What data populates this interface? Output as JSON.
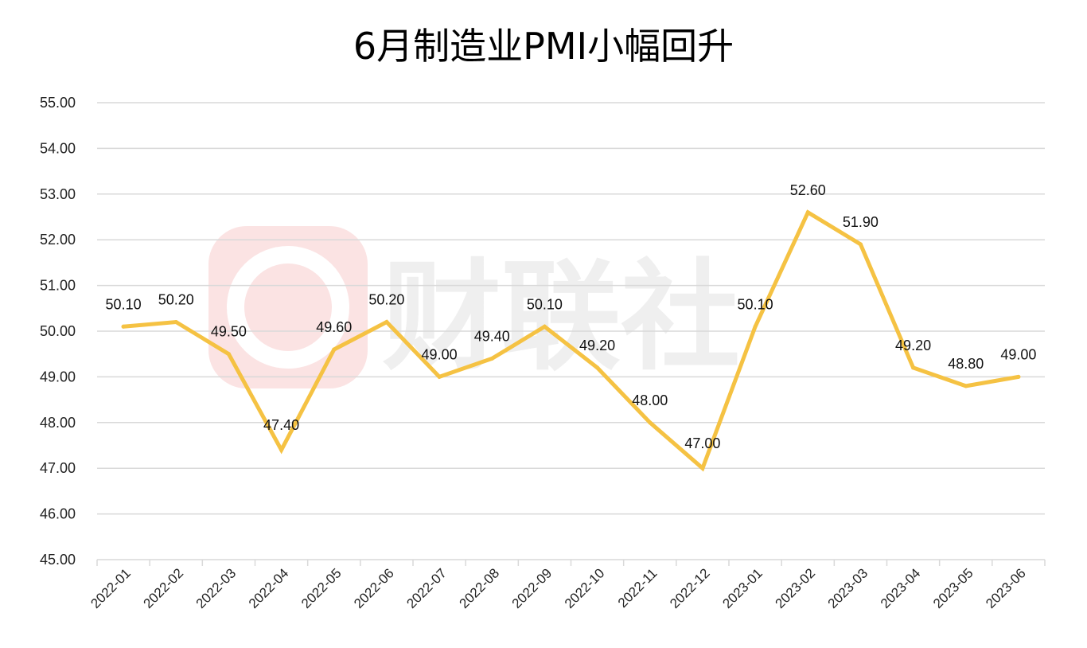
{
  "watermark": {
    "text": "财联社",
    "icon": "cls-logo-icon"
  },
  "colors": {
    "line": "#F5C243",
    "grid": "#D9D9D9",
    "watermark_badge": "#FBE3E3"
  },
  "chart_data": {
    "type": "line",
    "title": "6月制造业PMI小幅回升",
    "xlabel": "",
    "ylabel": "",
    "categories": [
      "2022-01",
      "2022-02",
      "2022-03",
      "2022-04",
      "2022-05",
      "2022-06",
      "2022-07",
      "2022-08",
      "2022-09",
      "2022-10",
      "2022-11",
      "2022-12",
      "2023-01",
      "2023-02",
      "2023-03",
      "2023-04",
      "2023-05",
      "2023-06"
    ],
    "series": [
      {
        "values": [
          50.1,
          50.2,
          49.5,
          47.4,
          49.6,
          50.2,
          49.0,
          49.4,
          50.1,
          49.2,
          48.0,
          47.0,
          50.1,
          52.6,
          51.9,
          49.2,
          48.8,
          49.0
        ]
      }
    ],
    "ylim": [
      45,
      55
    ],
    "yticks": [
      "45.00",
      "46.00",
      "47.00",
      "48.00",
      "49.00",
      "50.00",
      "51.00",
      "52.00",
      "53.00",
      "54.00",
      "55.00"
    ],
    "data_labels": [
      "50.10",
      "50.20",
      "49.50",
      "47.40",
      "49.60",
      "50.20",
      "49.00",
      "49.40",
      "50.10",
      "49.20",
      "48.00",
      "47.00",
      "50.10",
      "52.60",
      "51.90",
      "49.20",
      "48.80",
      "49.00"
    ],
    "grid": true,
    "legend": "none"
  }
}
